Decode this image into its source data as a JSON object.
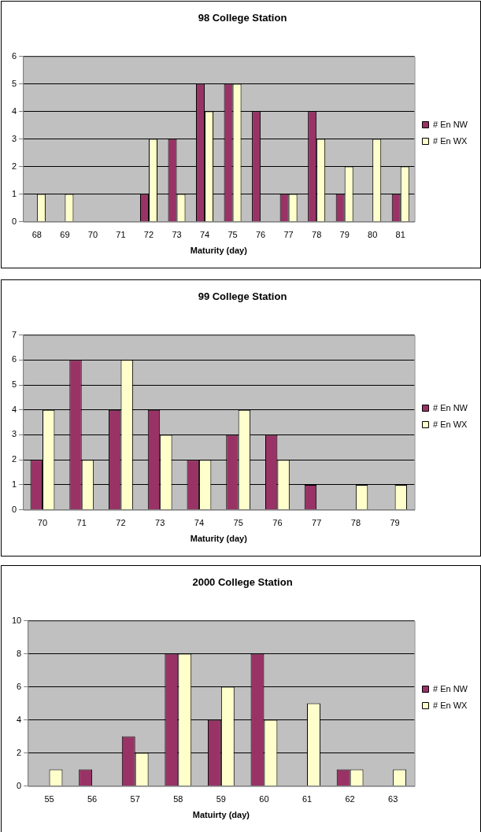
{
  "chart_data": [
    {
      "type": "bar",
      "title": "98 College Station",
      "xlabel": "Maturity (day)",
      "categories": [
        "68",
        "69",
        "70",
        "71",
        "72",
        "73",
        "74",
        "75",
        "76",
        "77",
        "78",
        "79",
        "80",
        "81"
      ],
      "series": [
        {
          "name": "# En NW",
          "color": "#993366",
          "values": [
            null,
            null,
            null,
            null,
            1,
            3,
            5,
            5,
            4,
            1,
            4,
            1,
            null,
            1
          ]
        },
        {
          "name": "# En WX",
          "color": "#ffffcc",
          "values": [
            1,
            1,
            null,
            null,
            3,
            1,
            4,
            5,
            null,
            1,
            3,
            2,
            3,
            2
          ]
        }
      ],
      "ylim": [
        0,
        6
      ],
      "yticks": [
        0,
        1,
        2,
        3,
        4,
        5,
        6
      ],
      "grid": "y",
      "legend": "right"
    },
    {
      "type": "bar",
      "title": "99 College Station",
      "xlabel": "Maturity (day)",
      "categories": [
        "70",
        "71",
        "72",
        "73",
        "74",
        "75",
        "76",
        "77",
        "78",
        "79"
      ],
      "series": [
        {
          "name": "# En NW",
          "color": "#993366",
          "values": [
            2,
            6,
            4,
            4,
            2,
            3,
            3,
            1,
            null,
            null
          ]
        },
        {
          "name": "# En WX",
          "color": "#ffffcc",
          "values": [
            4,
            2,
            6,
            3,
            2,
            4,
            2,
            null,
            1,
            1
          ]
        }
      ],
      "ylim": [
        0,
        7
      ],
      "yticks": [
        0,
        1,
        2,
        3,
        4,
        5,
        6,
        7
      ],
      "grid": "y",
      "legend": "right"
    },
    {
      "type": "bar",
      "title": "2000 College Station",
      "xlabel": "Matuirty (day)",
      "categories": [
        "55",
        "56",
        "57",
        "58",
        "59",
        "60",
        "61",
        "62",
        "63"
      ],
      "series": [
        {
          "name": "# En NW",
          "color": "#993366",
          "values": [
            null,
            1,
            3,
            8,
            4,
            8,
            null,
            1,
            null
          ]
        },
        {
          "name": "# En WX",
          "color": "#ffffcc",
          "values": [
            1,
            null,
            2,
            8,
            6,
            4,
            5,
            1,
            1
          ]
        }
      ],
      "ylim": [
        0,
        10
      ],
      "yticks": [
        0,
        2,
        4,
        6,
        8,
        10
      ],
      "grid": "y",
      "legend": "right"
    }
  ]
}
